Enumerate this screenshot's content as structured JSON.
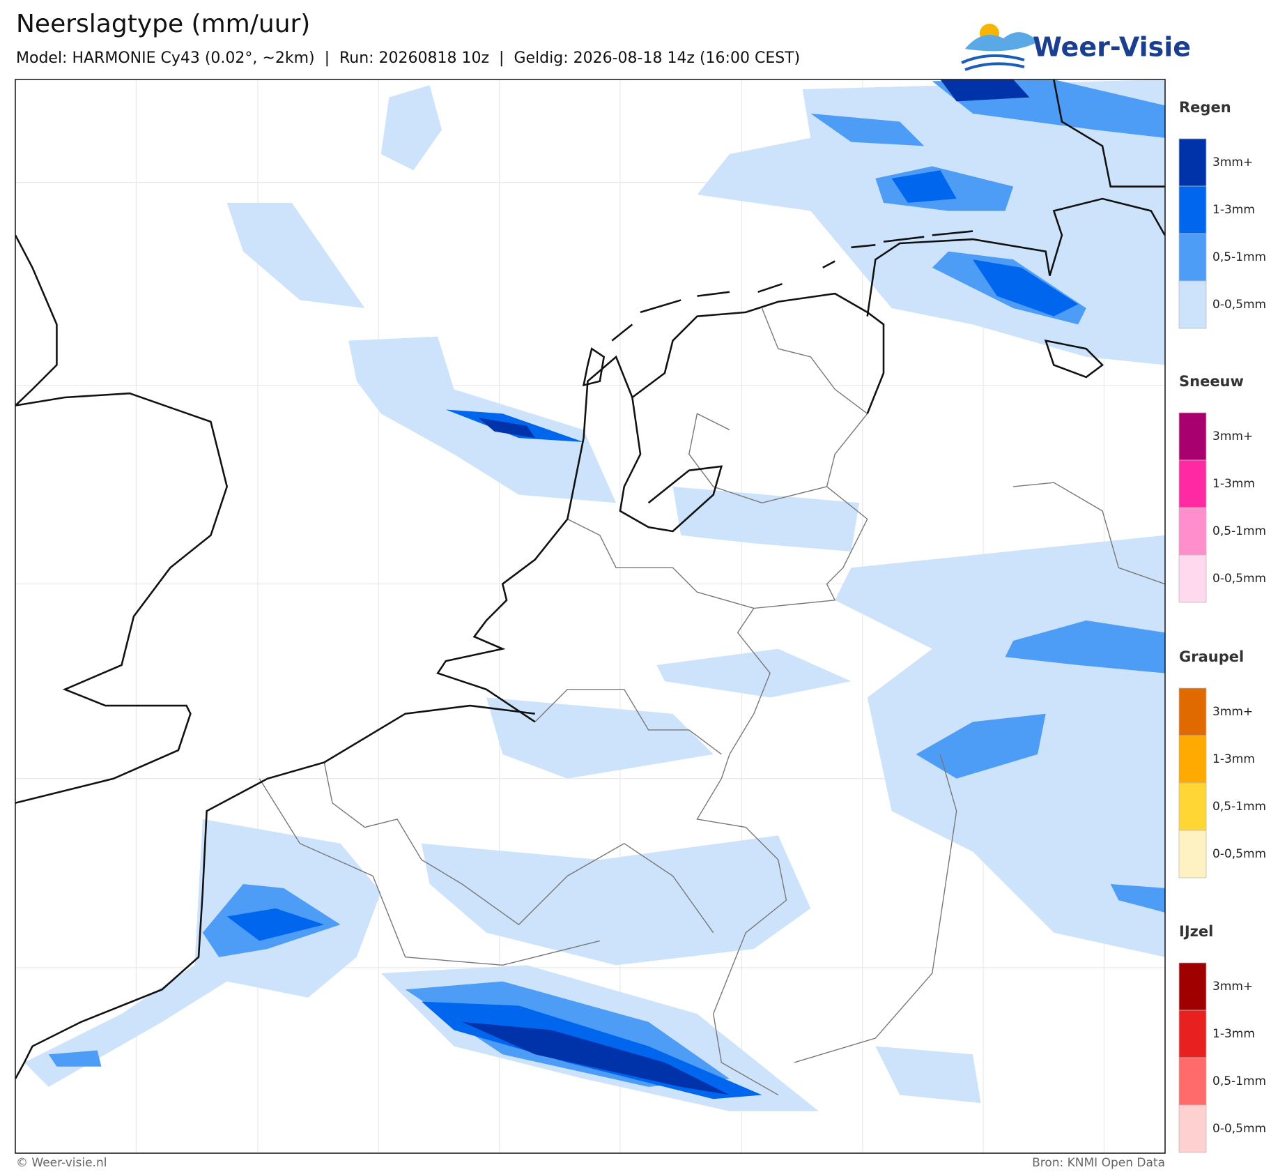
{
  "header": {
    "title": "Neerslagtype (mm/uur)",
    "subtitle": "Model: HARMONIE Cy43 (0.02°, ~2km)  |  Run: 20260818 10z  |  Geldig: 2026-08-18 14z (16:00 CEST)",
    "logo": "Weer-Visie"
  },
  "legend": [
    {
      "title": "Regen",
      "items": [
        {
          "label": "3mm+",
          "color": "#0033aa"
        },
        {
          "label": "1-3mm",
          "color": "#0066ee"
        },
        {
          "label": "0,5-1mm",
          "color": "#4d9cf5"
        },
        {
          "label": "0-0,5mm",
          "color": "#cce3fb"
        }
      ]
    },
    {
      "title": "Sneeuw",
      "items": [
        {
          "label": "3mm+",
          "color": "#a8006e"
        },
        {
          "label": "1-3mm",
          "color": "#ff2aa3"
        },
        {
          "label": "0,5-1mm",
          "color": "#ff8fcc"
        },
        {
          "label": "0-0,5mm",
          "color": "#ffd9ee"
        }
      ]
    },
    {
      "title": "Graupel",
      "items": [
        {
          "label": "3mm+",
          "color": "#e06a00"
        },
        {
          "label": "1-3mm",
          "color": "#ffaa00"
        },
        {
          "label": "0,5-1mm",
          "color": "#ffd633"
        },
        {
          "label": "0-0,5mm",
          "color": "#fff2c2"
        }
      ]
    },
    {
      "title": "IJzel",
      "items": [
        {
          "label": "3mm+",
          "color": "#a00000"
        },
        {
          "label": "1-3mm",
          "color": "#e82020"
        },
        {
          "label": "0,5-1mm",
          "color": "#ff6b6b"
        },
        {
          "label": "0-0,5mm",
          "color": "#ffd0d0"
        }
      ]
    }
  ],
  "footer": {
    "copyright": "© Weer-visie.nl",
    "source": "Bron: KNMI Open Data"
  }
}
